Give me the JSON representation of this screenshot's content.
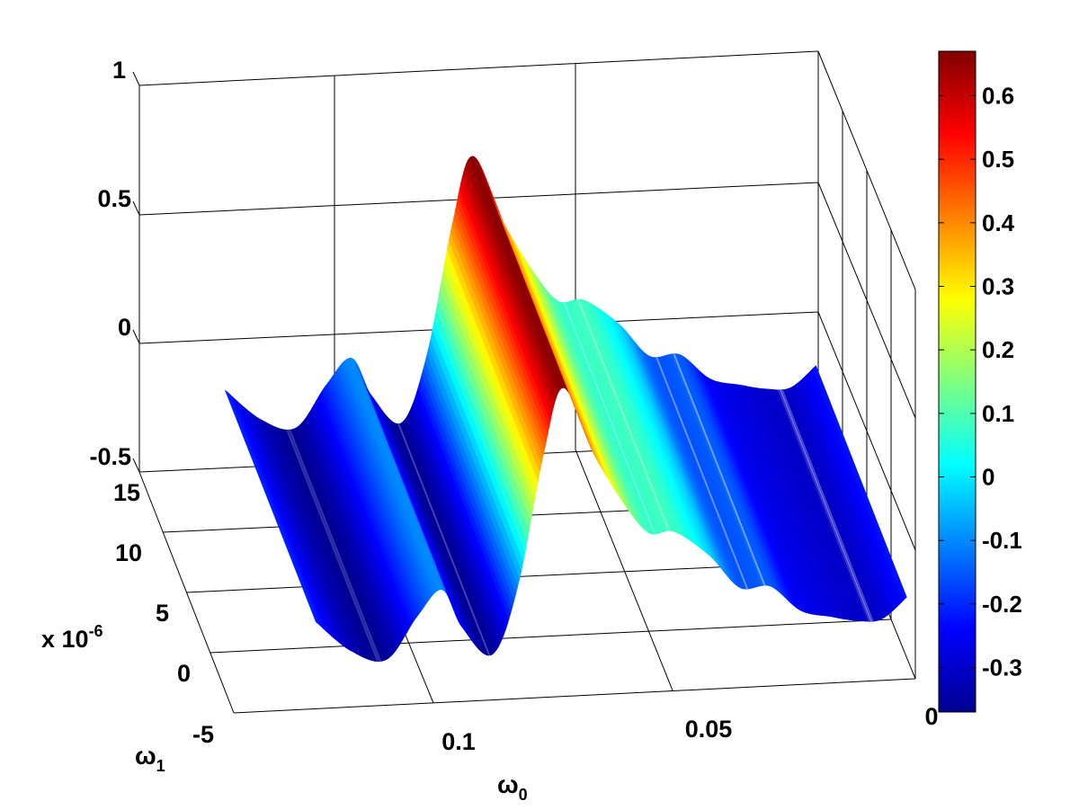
{
  "chart_data": {
    "type": "surface",
    "title": "",
    "x_axis": {
      "label": "ω",
      "label_subscript": "0",
      "tick_labels": [
        "0.1",
        "0.05",
        "0"
      ],
      "ticks": [
        0.1,
        0.05,
        0.0
      ],
      "range": [
        0.0,
        0.135
      ],
      "reversed": true
    },
    "y_axis": {
      "label": "ω",
      "label_subscript": "1",
      "tick_labels": [
        "-5",
        "0",
        "5",
        "10",
        "15"
      ],
      "ticks": [
        -5,
        0,
        5,
        10,
        15
      ],
      "range": [
        -5,
        15
      ],
      "exponent_label": "x 10",
      "exponent_power": "-6"
    },
    "z_axis": {
      "tick_labels": [
        "-0.5",
        "0",
        "0.5",
        "1"
      ],
      "ticks": [
        -0.5,
        0,
        0.5,
        1
      ],
      "range": [
        -0.5,
        1
      ]
    },
    "surface": {
      "description_source": "profile along ω0 (constant along ω1)",
      "x": [
        0.118,
        0.111,
        0.104,
        0.098,
        0.093,
        0.089,
        0.083,
        0.078,
        0.073,
        0.069,
        0.063,
        0.057,
        0.052,
        0.047,
        0.04,
        0.034,
        0.028,
        0.022,
        0.016,
        0.011,
        0.006,
        0.001
      ],
      "z": [
        -0.2,
        -0.32,
        -0.36,
        -0.2,
        -0.1,
        -0.25,
        -0.36,
        -0.1,
        0.4,
        0.66,
        0.4,
        0.2,
        0.08,
        0.08,
        -0.02,
        -0.15,
        -0.15,
        -0.25,
        -0.28,
        -0.3,
        -0.3,
        -0.22
      ]
    },
    "colorbar": {
      "colormap": "jet",
      "tick_labels": [
        "-0.3",
        "-0.2",
        "-0.1",
        "0",
        "0.1",
        "0.2",
        "0.3",
        "0.4",
        "0.5",
        "0.6"
      ],
      "ticks": [
        -0.3,
        -0.2,
        -0.1,
        0,
        0.1,
        0.2,
        0.3,
        0.4,
        0.5,
        0.6
      ],
      "range": [
        -0.37,
        0.67
      ],
      "placement": "right"
    },
    "grid": true
  }
}
